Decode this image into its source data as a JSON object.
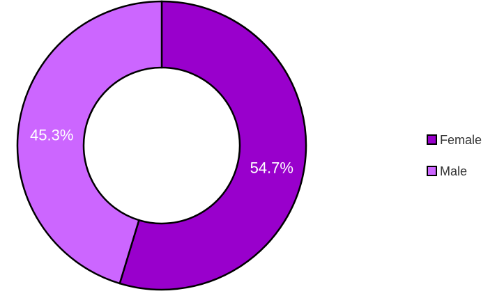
{
  "chart_data": {
    "type": "donut",
    "categories": [
      "Female",
      "Male"
    ],
    "values": [
      54.7,
      45.3
    ],
    "value_labels": [
      "54.7%",
      "45.3%"
    ],
    "colors": [
      "#9900cc",
      "#cc66ff"
    ],
    "legend": "right"
  }
}
